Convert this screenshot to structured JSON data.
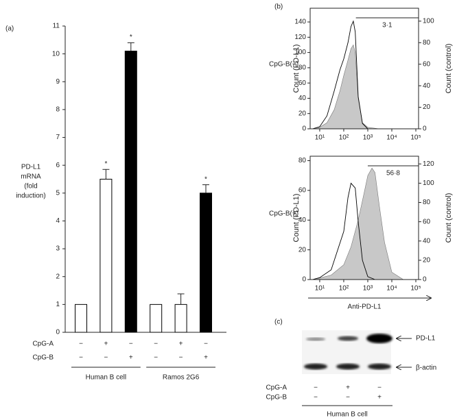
{
  "chart_data": [
    {
      "type": "bar",
      "label": "(a)",
      "ylabel": [
        "PD-L1",
        "mRNA",
        "(fold",
        "induction)"
      ],
      "values": [
        1,
        5.5,
        10.1,
        1,
        1,
        5.0
      ],
      "errors": [
        null,
        0.35,
        0.3,
        null,
        0.38,
        0.3
      ],
      "annotations": [
        null,
        "*",
        "*",
        null,
        null,
        "*"
      ],
      "colors": [
        "#ffffff",
        "#ffffff",
        "#000000",
        "#ffffff",
        "#ffffff",
        "#000000"
      ],
      "ylim": [
        0,
        11
      ],
      "yticks": [
        0,
        1,
        2,
        3,
        4,
        5,
        6,
        7,
        8,
        9,
        10,
        11
      ],
      "treatments": [
        {
          "name": "CpG-A",
          "signs": [
            "−",
            "+",
            "−",
            "−",
            "+",
            "−"
          ]
        },
        {
          "name": "CpG-B",
          "signs": [
            "−",
            "−",
            "+",
            "−",
            "−",
            "+"
          ]
        }
      ],
      "groups": [
        "Human B cell",
        "Ramos 2G6"
      ]
    },
    {
      "type": "area",
      "label": "(b)",
      "row_label": "CpG-B(−)",
      "ylabel": "Count (PD-L1)",
      "y2label": "Count (control)",
      "log_x": true,
      "xlim": [
        4,
        130000
      ],
      "xticks": [
        {
          "value": 10,
          "label": "10¹"
        },
        {
          "value": 100,
          "label": "10²"
        },
        {
          "value": 1000,
          "label": "10³"
        },
        {
          "value": 10000,
          "label": "10⁴"
        },
        {
          "value": 100000,
          "label": "10⁵"
        }
      ],
      "ylim": [
        0,
        158
      ],
      "yticks": [
        0,
        20,
        40,
        60,
        80,
        100,
        120,
        140
      ],
      "y2lim": [
        0,
        112
      ],
      "y2ticks": [
        0,
        20,
        40,
        60,
        80,
        100
      ],
      "gate": {
        "start": 320,
        "label": "3·1"
      },
      "series": [
        {
          "color": "#c8c8c8",
          "x": [
            5,
            10,
            20,
            40,
            70,
            100,
            150,
            200,
            250,
            300,
            400,
            600,
            1000,
            3000
          ],
          "values": [
            0,
            2,
            8,
            25,
            50,
            70,
            90,
            105,
            110,
            100,
            40,
            8,
            2,
            0
          ]
        },
        {
          "color": "#000000",
          "axis": "y2",
          "x": [
            5,
            10,
            20,
            40,
            70,
            100,
            150,
            200,
            250,
            300,
            400,
            600,
            1000
          ],
          "values": [
            0,
            2,
            12,
            35,
            55,
            65,
            80,
            95,
            100,
            90,
            30,
            5,
            0
          ]
        }
      ]
    },
    {
      "type": "area",
      "row_label": "CpG-B(+)",
      "xlabel": "Anti-PD-L1",
      "ylabel": "Count (PD-L1)",
      "y2label": "Count (control)",
      "log_x": true,
      "xlim": [
        4,
        130000
      ],
      "xticks": [
        {
          "value": 10,
          "label": "10¹"
        },
        {
          "value": 100,
          "label": "10²"
        },
        {
          "value": 1000,
          "label": "10³"
        },
        {
          "value": 10000,
          "label": "10⁴"
        },
        {
          "value": 100000,
          "label": "10⁵"
        }
      ],
      "ylim": [
        0,
        83
      ],
      "yticks": [
        0,
        20,
        40,
        60,
        80
      ],
      "y2lim": [
        0,
        128
      ],
      "y2ticks": [
        0,
        20,
        40,
        60,
        80,
        100,
        120
      ],
      "gate": {
        "start": 1000,
        "label": "56·8"
      },
      "series": [
        {
          "color": "#c8c8c8",
          "x": [
            5,
            10,
            30,
            100,
            200,
            400,
            700,
            1000,
            1500,
            2000,
            3000,
            5000,
            10000,
            30000
          ],
          "values": [
            0,
            1,
            3,
            10,
            22,
            40,
            58,
            70,
            75,
            72,
            50,
            25,
            5,
            0
          ]
        },
        {
          "color": "#000000",
          "axis": "y2",
          "x": [
            5,
            10,
            30,
            100,
            150,
            200,
            300,
            400,
            600,
            1000,
            2000
          ],
          "values": [
            0,
            2,
            10,
            50,
            85,
            100,
            95,
            60,
            20,
            3,
            0
          ]
        }
      ]
    }
  ],
  "blot": {
    "label": "(c)",
    "bands": [
      "PD-L1",
      "β-actin"
    ],
    "treatments": [
      {
        "name": "CpG-A",
        "signs": [
          "−",
          "+",
          "−"
        ]
      },
      {
        "name": "CpG-B",
        "signs": [
          "−",
          "−",
          "+"
        ]
      }
    ],
    "group": "Human B cell"
  }
}
